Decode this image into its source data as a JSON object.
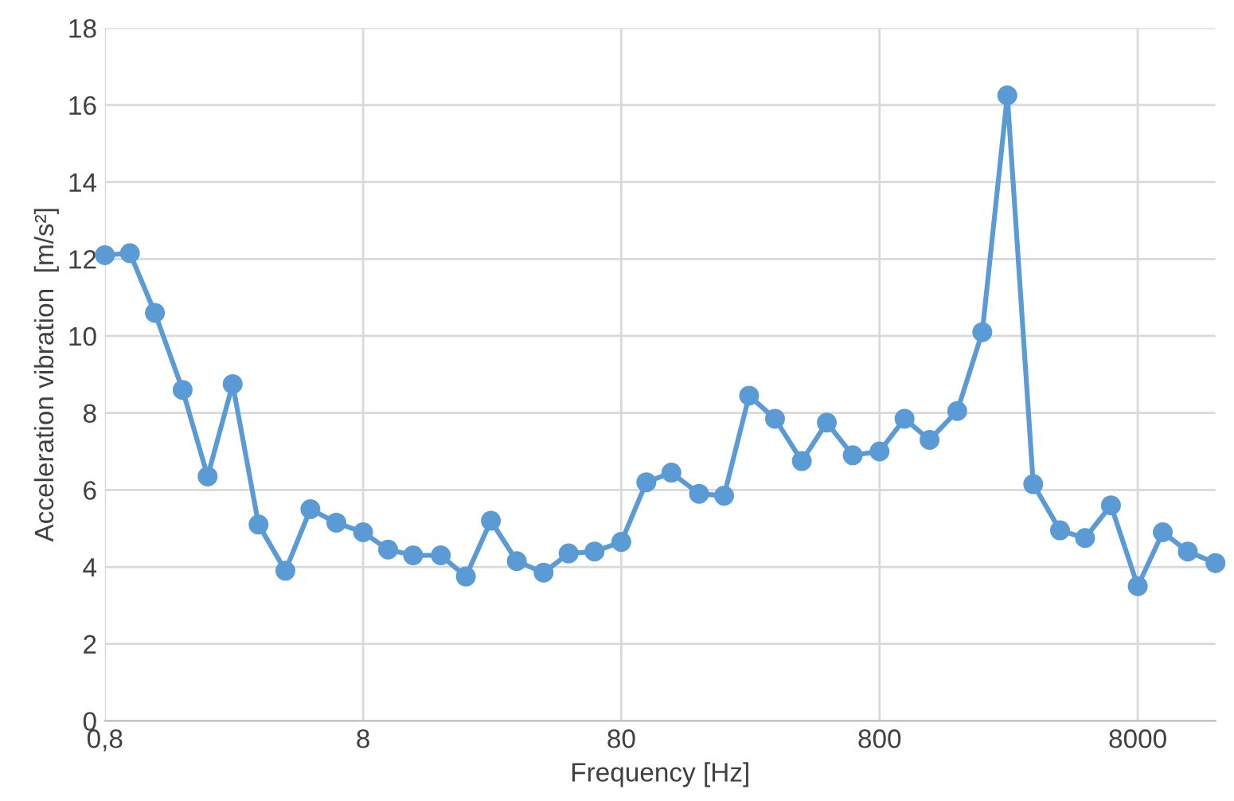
{
  "chart_data": {
    "type": "line",
    "xlabel": "Frequency [Hz]",
    "ylabel": "Acceleration vibration  [m/s²]",
    "x": [
      0.8,
      1,
      1.25,
      1.6,
      2,
      2.5,
      3.15,
      4,
      5,
      6.3,
      8,
      10,
      12.5,
      16,
      20,
      25,
      31.5,
      40,
      50,
      63,
      80,
      100,
      125,
      160,
      200,
      250,
      315,
      400,
      500,
      630,
      800,
      1000,
      1250,
      1600,
      2000,
      2500,
      3150,
      4000,
      5000,
      6300,
      8000,
      10000,
      12500,
      16000
    ],
    "series": [
      {
        "color": "#5b9bd5",
        "values": [
          12.1,
          12.15,
          10.6,
          8.6,
          6.35,
          8.75,
          5.1,
          3.9,
          5.5,
          5.15,
          4.9,
          4.45,
          4.3,
          4.3,
          3.75,
          5.2,
          4.15,
          3.85,
          4.35,
          4.4,
          4.65,
          6.2,
          6.45,
          5.9,
          5.85,
          8.45,
          7.85,
          6.75,
          7.75,
          6.9,
          7.0,
          7.85,
          7.3,
          8.05,
          10.1,
          16.25,
          6.15,
          4.95,
          4.75,
          5.6,
          3.5,
          4.9,
          4.4,
          4.1
        ]
      }
    ],
    "log": "x",
    "xlim": [
      0.8,
      16000
    ],
    "xticks": [
      {
        "value": 0.8,
        "label": "0,8"
      },
      8,
      80,
      800,
      8000
    ],
    "ylim": [
      0,
      18
    ],
    "yticks": [
      0,
      2,
      4,
      6,
      8,
      10,
      12,
      14,
      16,
      18
    ],
    "grid": true,
    "marker": "circle",
    "line_style": "solid"
  }
}
